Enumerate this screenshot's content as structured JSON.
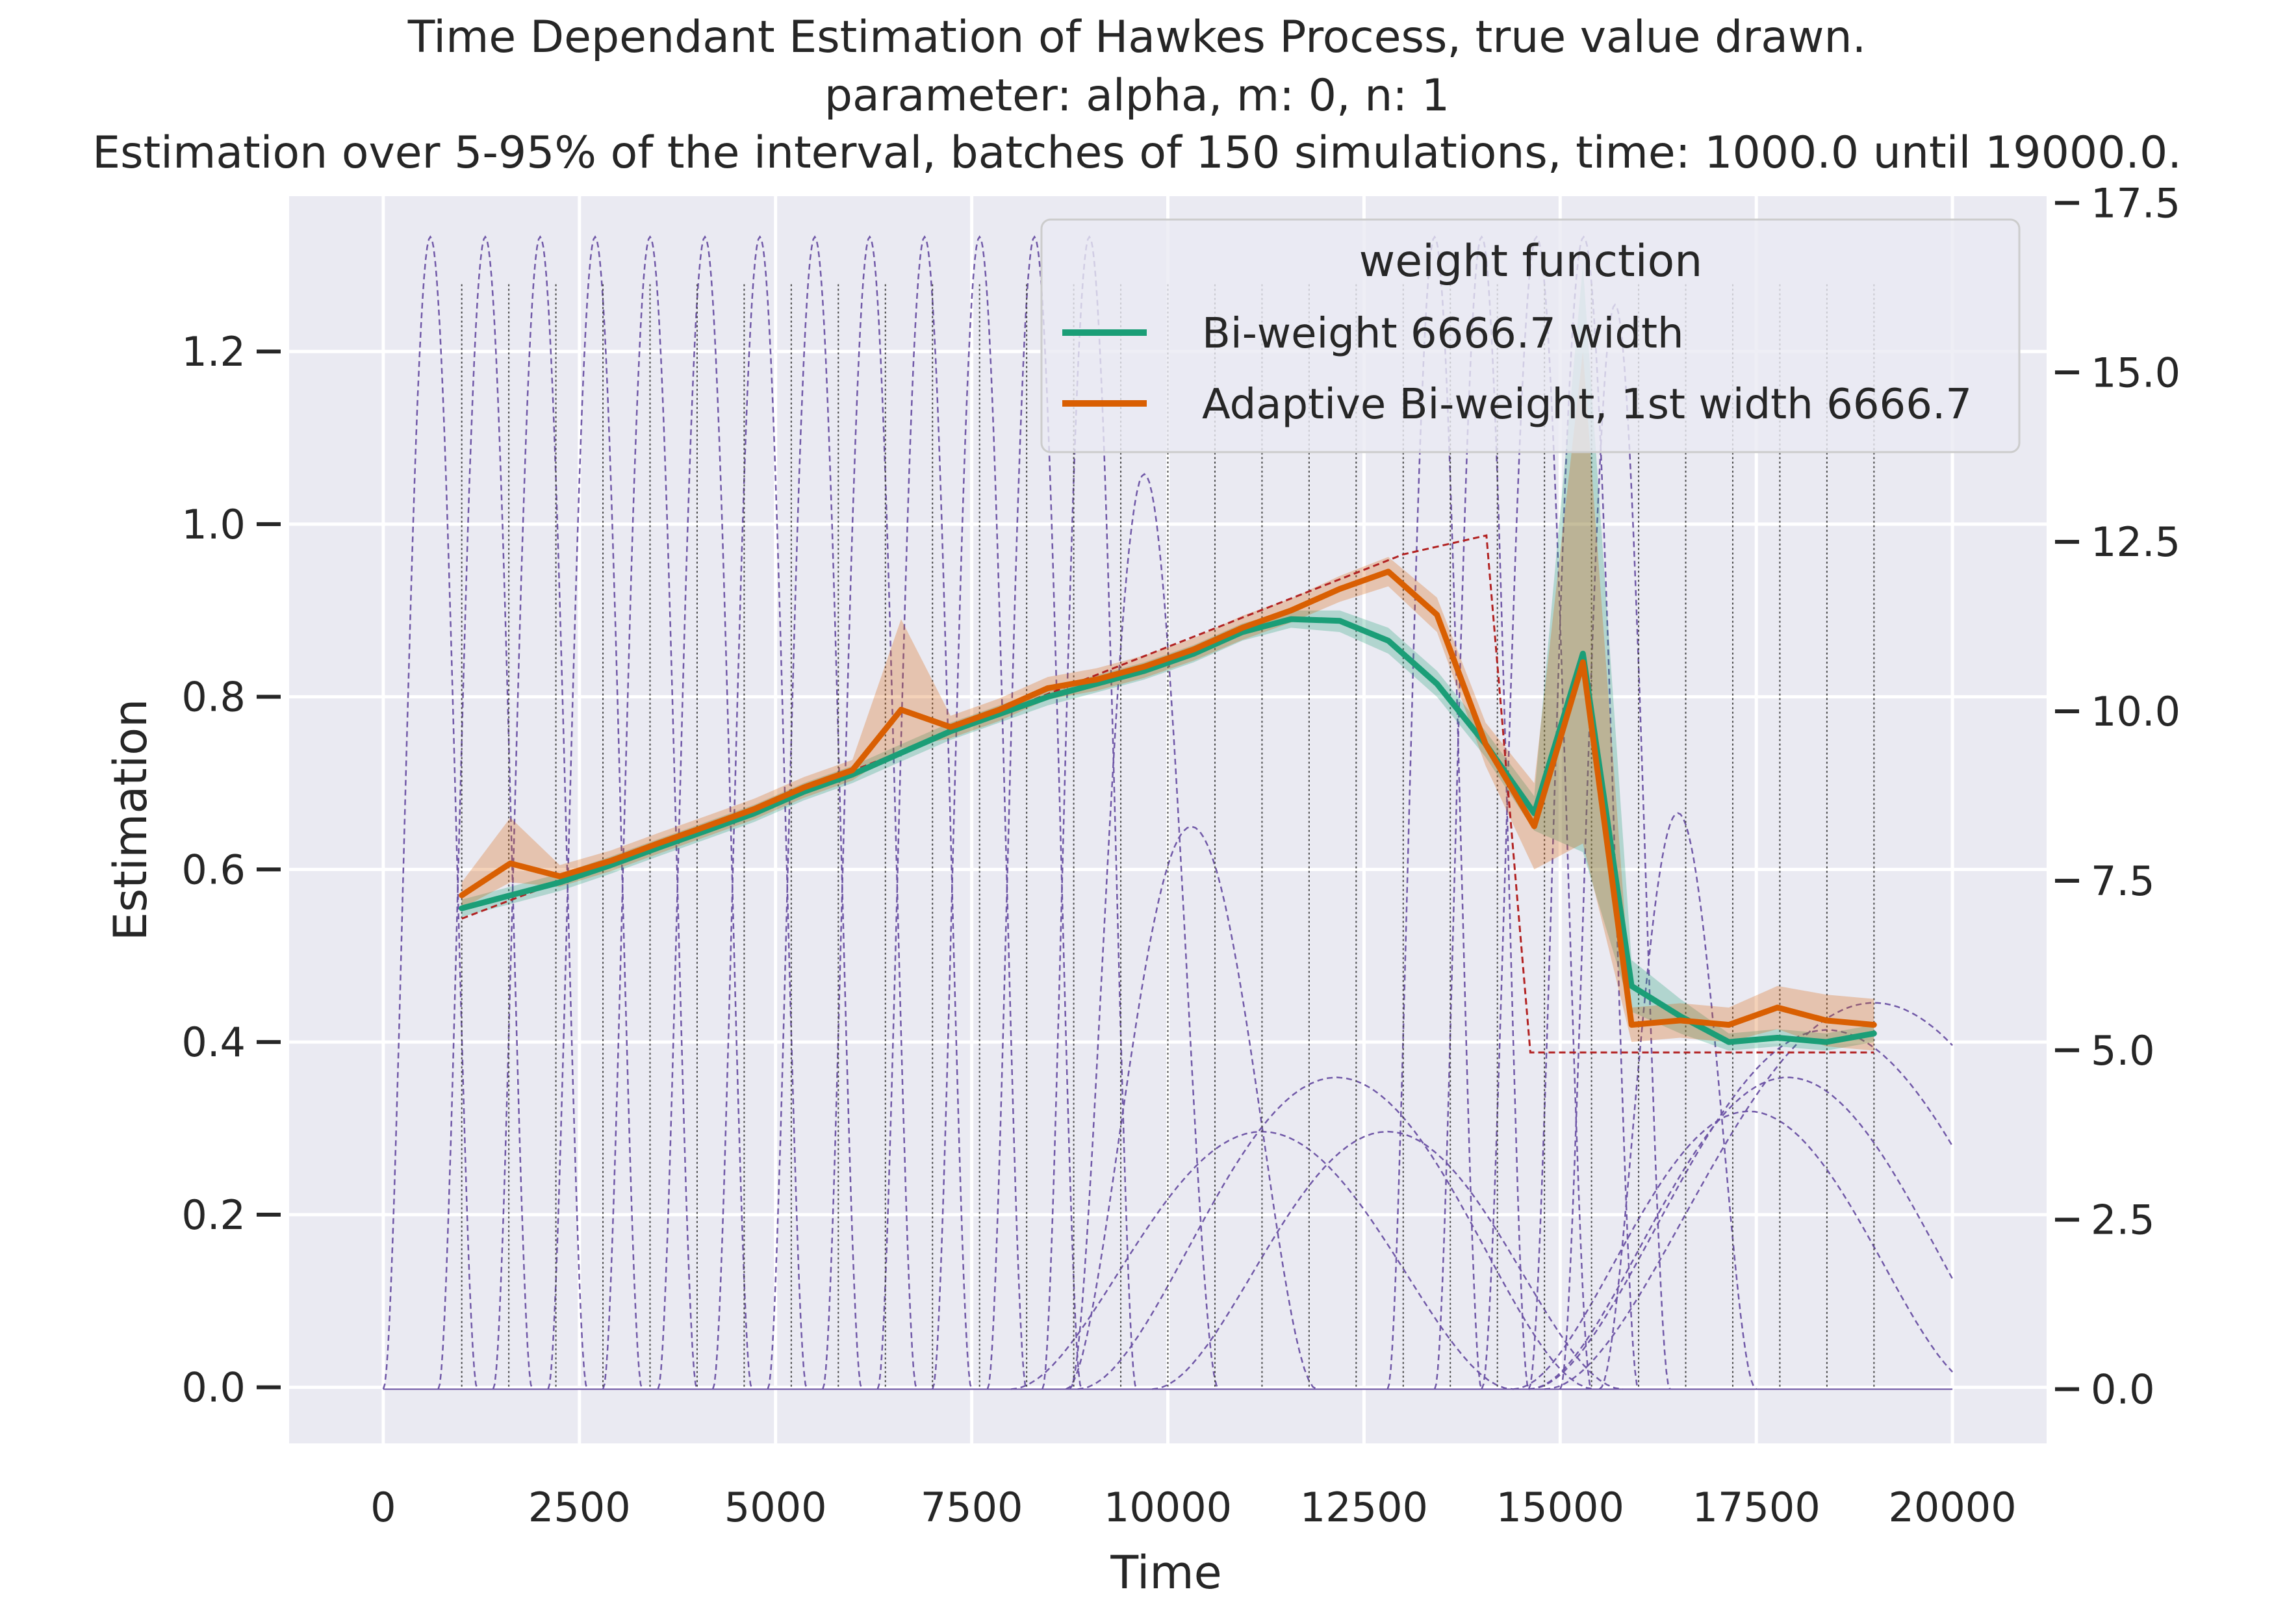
{
  "chart_data": {
    "type": "line",
    "title_lines": [
      "Time Dependant Estimation of Hawkes Process, true value drawn.",
      "parameter: alpha, m: 0, n: 1",
      "Estimation over 5-95% of the interval, batches of 150 simulations, time: 1000.0 until 19000.0."
    ],
    "xlabel": "Time",
    "ylabel": "Estimation",
    "xlim": [
      -1200,
      21200
    ],
    "ylim": [
      -0.065,
      1.38
    ],
    "y2lim": [
      -0.8,
      17.6
    ],
    "x_ticks": [
      0,
      2500,
      5000,
      7500,
      10000,
      12500,
      15000,
      17500,
      20000
    ],
    "x_tick_labels": [
      "0",
      "2500",
      "5000",
      "7500",
      "10000",
      "12500",
      "15000",
      "17500",
      "20000"
    ],
    "y_ticks": [
      0.0,
      0.2,
      0.4,
      0.6,
      0.8,
      1.0,
      1.2
    ],
    "y_tick_labels": [
      "0.0",
      "0.2",
      "0.4",
      "0.6",
      "0.8",
      "1.0",
      "1.2"
    ],
    "y2_ticks": [
      0,
      2.5,
      5,
      7.5,
      10,
      12.5,
      15,
      17.5
    ],
    "y2_tick_labels": [
      "0.0",
      "2.5",
      "5.0",
      "7.5",
      "10.0",
      "12.5",
      "15.0",
      "17.5"
    ],
    "grid": true,
    "legend": {
      "title": "weight function",
      "placement": "top-right"
    },
    "x": [
      1000,
      1600,
      2200,
      2800,
      3400,
      4000,
      4600,
      5200,
      5800,
      6400,
      7000,
      7600,
      8200,
      8800,
      9400,
      10000,
      10600,
      11200,
      11800,
      12400,
      13000,
      13600,
      14200,
      14800,
      15400,
      16000,
      16600,
      17200,
      17800,
      18400,
      19000
    ],
    "series": [
      {
        "name": "Bi-weight 6666.7 width",
        "color": "#1b9e77",
        "x": [
          1000,
          1620,
          2250,
          2900,
          3500,
          4120,
          4730,
          5360,
          5980,
          6600,
          7230,
          7850,
          8470,
          9090,
          9700,
          10330,
          10950,
          11570,
          12190,
          12810,
          13430,
          14050,
          14670,
          15290,
          15910,
          16530,
          17150,
          17770,
          18390,
          19000
        ],
        "values": [
          0.555,
          0.57,
          0.585,
          0.605,
          0.625,
          0.645,
          0.665,
          0.69,
          0.71,
          0.735,
          0.76,
          0.78,
          0.8,
          0.815,
          0.83,
          0.85,
          0.875,
          0.89,
          0.888,
          0.865,
          0.815,
          0.745,
          0.665,
          0.85,
          0.465,
          0.43,
          0.4,
          0.405,
          0.4,
          0.41
        ],
        "ci_lower": [
          0.545,
          0.56,
          0.575,
          0.595,
          0.615,
          0.635,
          0.655,
          0.68,
          0.7,
          0.725,
          0.75,
          0.77,
          0.79,
          0.805,
          0.82,
          0.84,
          0.865,
          0.88,
          0.875,
          0.85,
          0.8,
          0.73,
          0.645,
          0.62,
          0.435,
          0.41,
          0.39,
          0.395,
          0.39,
          0.4
        ],
        "ci_upper": [
          0.565,
          0.58,
          0.595,
          0.615,
          0.635,
          0.655,
          0.675,
          0.7,
          0.72,
          0.745,
          0.77,
          0.79,
          0.81,
          0.825,
          0.84,
          0.86,
          0.885,
          0.9,
          0.9,
          0.88,
          0.83,
          0.76,
          0.685,
          1.3,
          0.495,
          0.45,
          0.41,
          0.415,
          0.41,
          0.42
        ]
      },
      {
        "name": "Adaptive Bi-weight, 1st width 6666.7",
        "color": "#d95f02",
        "x": [
          1000,
          1620,
          2250,
          2900,
          3500,
          4120,
          4730,
          5360,
          5980,
          6600,
          7230,
          7850,
          8470,
          9090,
          9700,
          10330,
          10950,
          11570,
          12190,
          12810,
          13430,
          14050,
          14670,
          15290,
          15910,
          16530,
          17150,
          17770,
          18390,
          19000
        ],
        "values": [
          0.57,
          0.607,
          0.592,
          0.61,
          0.63,
          0.65,
          0.67,
          0.695,
          0.715,
          0.785,
          0.765,
          0.785,
          0.81,
          0.82,
          0.835,
          0.855,
          0.88,
          0.9,
          0.925,
          0.945,
          0.895,
          0.745,
          0.65,
          0.84,
          0.42,
          0.425,
          0.42,
          0.44,
          0.425,
          0.42
        ],
        "ci_lower": [
          0.555,
          0.585,
          0.58,
          0.598,
          0.618,
          0.638,
          0.658,
          0.683,
          0.703,
          0.74,
          0.752,
          0.772,
          0.797,
          0.807,
          0.822,
          0.842,
          0.866,
          0.886,
          0.91,
          0.928,
          0.875,
          0.72,
          0.6,
          0.63,
          0.4,
          0.405,
          0.4,
          0.415,
          0.395,
          0.39
        ],
        "ci_upper": [
          0.585,
          0.66,
          0.605,
          0.622,
          0.642,
          0.662,
          0.682,
          0.707,
          0.727,
          0.89,
          0.778,
          0.798,
          0.823,
          0.833,
          0.848,
          0.868,
          0.894,
          0.914,
          0.94,
          0.962,
          0.915,
          0.77,
          0.7,
          1.2,
          0.44,
          0.445,
          0.44,
          0.465,
          0.455,
          0.45
        ]
      }
    ],
    "true_value": {
      "color": "#b22222",
      "x": [
        1000,
        6000,
        13000,
        14060,
        14620,
        19000
      ],
      "values": [
        0.543,
        0.715,
        0.965,
        0.987,
        0.388,
        0.388
      ]
    },
    "secondary_axis_kernels": {
      "color": "#6a51a3",
      "description_units": "right axis",
      "bumps": [
        {
          "center": 600,
          "half_width": 600,
          "height": 17.0
        },
        {
          "center": 1300,
          "half_width": 600,
          "height": 17.0
        },
        {
          "center": 2000,
          "half_width": 600,
          "height": 17.0
        },
        {
          "center": 2700,
          "half_width": 600,
          "height": 17.0
        },
        {
          "center": 3400,
          "half_width": 600,
          "height": 17.0
        },
        {
          "center": 4100,
          "half_width": 600,
          "height": 17.0
        },
        {
          "center": 4800,
          "half_width": 600,
          "height": 17.0
        },
        {
          "center": 5500,
          "half_width": 600,
          "height": 17.0
        },
        {
          "center": 6200,
          "half_width": 600,
          "height": 17.0
        },
        {
          "center": 6900,
          "half_width": 600,
          "height": 17.0
        },
        {
          "center": 7600,
          "half_width": 600,
          "height": 17.0
        },
        {
          "center": 8300,
          "half_width": 600,
          "height": 17.0
        },
        {
          "center": 9000,
          "half_width": 600,
          "height": 17.0
        },
        {
          "center": 9700,
          "half_width": 950,
          "height": 13.5
        },
        {
          "center": 10300,
          "half_width": 1600,
          "height": 8.3
        },
        {
          "center": 11200,
          "half_width": 3200,
          "height": 3.8
        },
        {
          "center": 12150,
          "half_width": 3300,
          "height": 4.6
        },
        {
          "center": 12800,
          "half_width": 3000,
          "height": 3.8
        },
        {
          "center": 13400,
          "half_width": 600,
          "height": 17.0
        },
        {
          "center": 14000,
          "half_width": 600,
          "height": 17.0
        },
        {
          "center": 14700,
          "half_width": 700,
          "height": 17.0
        },
        {
          "center": 15300,
          "half_width": 700,
          "height": 17.0
        },
        {
          "center": 15700,
          "half_width": 700,
          "height": 16.0
        },
        {
          "center": 16500,
          "half_width": 1000,
          "height": 8.5
        },
        {
          "center": 17400,
          "half_width": 3000,
          "height": 4.1
        },
        {
          "center": 17900,
          "half_width": 3300,
          "height": 4.6
        },
        {
          "center": 18400,
          "half_width": 3800,
          "height": 5.3
        },
        {
          "center": 19000,
          "half_width": 4200,
          "height": 5.7
        }
      ],
      "vertical_line_x": [
        1000,
        1600,
        2200,
        2800,
        3400,
        4000,
        4600,
        5200,
        5800,
        6400,
        7000,
        7600,
        8200,
        8800,
        9400,
        10000,
        10600,
        11200,
        11800,
        12400,
        13000,
        13600,
        14200,
        14800,
        15400,
        16000,
        16600,
        17200,
        17800,
        18400,
        19000
      ]
    }
  }
}
